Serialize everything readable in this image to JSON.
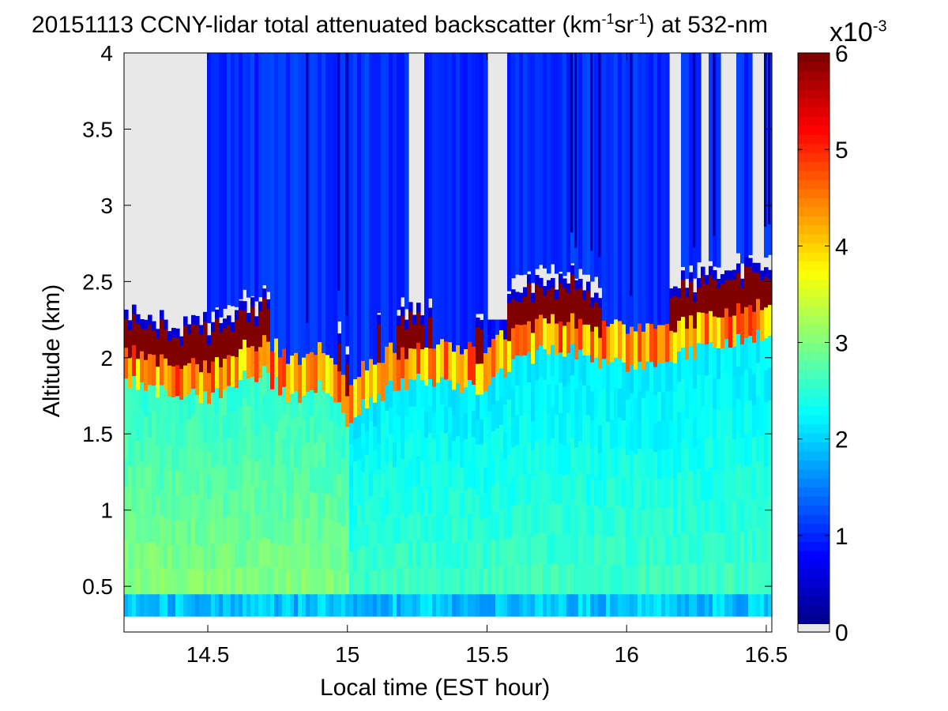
{
  "title": {
    "part1": "20151113 CCNY-lidar total attenuated backscatter (km",
    "sup1": "-1",
    "part2": "sr",
    "sup2": "-1",
    "part3": ") at 532-nm"
  },
  "colorbar": {
    "exponent_base": "x10",
    "exponent_power": "-3",
    "ticks": [
      0,
      1,
      2,
      3,
      4,
      5,
      6
    ],
    "range": [
      0,
      6
    ],
    "colormap": "jet",
    "nodata_color": "#e8e8e8"
  },
  "chart_data": {
    "type": "heatmap",
    "title": "20151113 CCNY-lidar total attenuated backscatter (km-1sr-1) at 532-nm",
    "xlabel": "Local time (EST hour)",
    "ylabel": "Altitude (km)",
    "xlim": [
      14.2,
      16.52
    ],
    "ylim": [
      0.2,
      4.0
    ],
    "xticks": [
      14.5,
      15,
      15.5,
      16,
      16.5
    ],
    "yticks": [
      0.5,
      1,
      1.5,
      2,
      2.5,
      3,
      3.5,
      4
    ],
    "value_unit_scale": 0.001,
    "grid": false,
    "min_altitude_with_data": 0.3,
    "boundary_layer_top": [
      {
        "x": 14.2,
        "y": 2.1
      },
      {
        "x": 14.3,
        "y": 2.05
      },
      {
        "x": 14.4,
        "y": 2.0
      },
      {
        "x": 14.5,
        "y": 2.0
      },
      {
        "x": 14.6,
        "y": 2.1
      },
      {
        "x": 14.7,
        "y": 2.15
      },
      {
        "x": 14.8,
        "y": 2.0
      },
      {
        "x": 14.9,
        "y": 2.05
      },
      {
        "x": 15.0,
        "y": 1.85
      },
      {
        "x": 15.1,
        "y": 2.0
      },
      {
        "x": 15.2,
        "y": 2.1
      },
      {
        "x": 15.3,
        "y": 2.1
      },
      {
        "x": 15.4,
        "y": 2.05
      },
      {
        "x": 15.5,
        "y": 2.05
      },
      {
        "x": 15.6,
        "y": 2.2
      },
      {
        "x": 15.7,
        "y": 2.3
      },
      {
        "x": 15.8,
        "y": 2.3
      },
      {
        "x": 15.9,
        "y": 2.2
      },
      {
        "x": 16.0,
        "y": 2.2
      },
      {
        "x": 16.1,
        "y": 2.2
      },
      {
        "x": 16.2,
        "y": 2.3
      },
      {
        "x": 16.3,
        "y": 2.3
      },
      {
        "x": 16.4,
        "y": 2.4
      },
      {
        "x": 16.5,
        "y": 2.4
      }
    ],
    "aerosol_layer_values": [
      {
        "y_range": [
          0.3,
          0.45
        ],
        "value": 2.0
      },
      {
        "y_range": [
          0.45,
          1.5
        ],
        "value": 2.8
      },
      {
        "y_range": [
          1.5,
          2.0
        ],
        "value": 2.4
      },
      {
        "y_range": [
          2.0,
          2.4
        ],
        "value": 6.0
      },
      {
        "y_range": [
          2.4,
          4.0
        ],
        "value": 1.0
      }
    ]
  }
}
